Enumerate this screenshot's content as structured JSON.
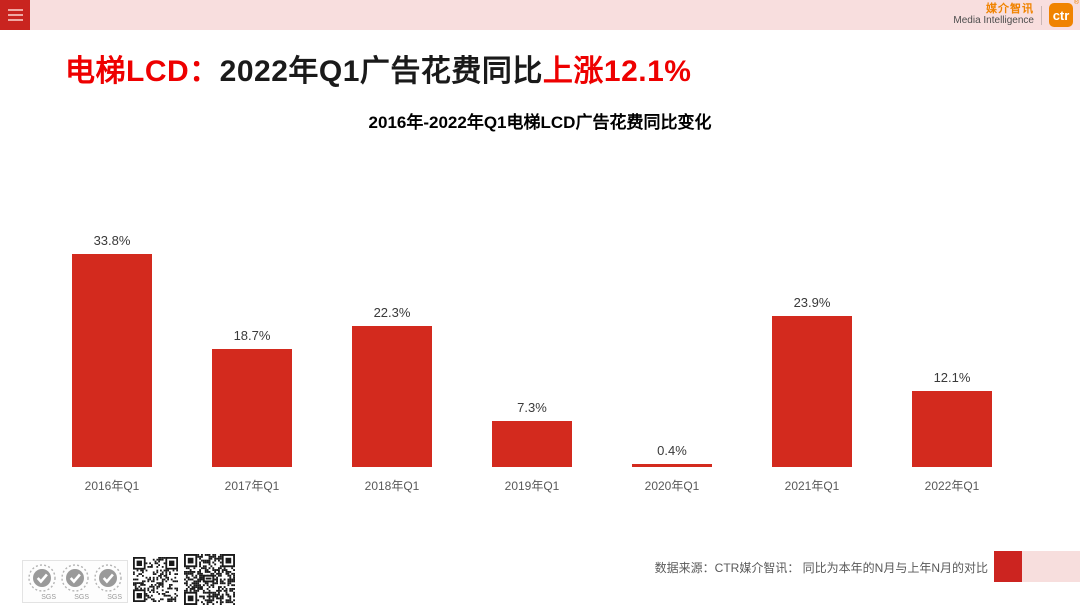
{
  "header": {
    "brand_cn": "媒介智讯",
    "brand_en": "Media Intelligence",
    "logo_mark": "ctr",
    "trademark": "®"
  },
  "title": {
    "prefix": "电梯LCD：",
    "body": "2022年Q1广告花费同比",
    "highlight": "上涨12.1%"
  },
  "chart_data": {
    "type": "bar",
    "title": "2016年-2022年Q1电梯LCD广告花费同比变化",
    "categories": [
      "2016年Q1",
      "2017年Q1",
      "2018年Q1",
      "2019年Q1",
      "2020年Q1",
      "2021年Q1",
      "2022年Q1"
    ],
    "values": [
      33.8,
      18.7,
      22.3,
      7.3,
      0.4,
      23.9,
      12.1
    ],
    "labels": [
      "33.8%",
      "18.7%",
      "22.3%",
      "7.3%",
      "0.4%",
      "23.9%",
      "12.1%"
    ],
    "unit": "%",
    "ylim": [
      0,
      35
    ],
    "grid": false,
    "legend": false,
    "axes_hidden": true,
    "bar_color": "#d32a1e"
  },
  "footer": {
    "source_note": "数据来源：CTR媒介智讯：  同比为本年的N月与上年N月的对比",
    "sgs_label": "SGS"
  },
  "colors": {
    "accent_red": "#ee0000",
    "bar_red": "#d32a1e",
    "band_pink": "#f8dede",
    "menu_red": "#c9241f",
    "logo_orange": "#f08300",
    "footer_block_red": "#cc2420",
    "footer_block_pink": "#f7dedd"
  }
}
